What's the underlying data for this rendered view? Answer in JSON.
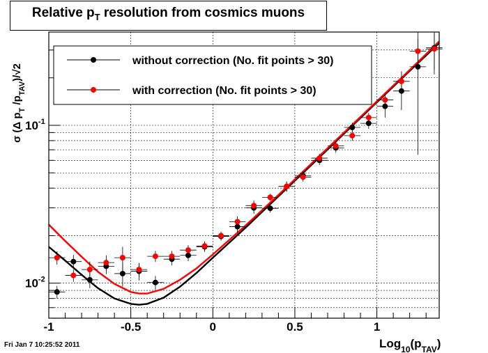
{
  "chart_data": {
    "type": "scatter",
    "title_main": "Relative p",
    "title_sub": "T",
    "title_end": " resolution from cosmics muons",
    "xlabel": "Log",
    "xlabel_sub": "10",
    "xlabel_paren": "(p",
    "xlabel_sub2": "TAV",
    "xlabel_close": ")",
    "ylabel": "σ (Δ p",
    "ylabel_sub": "T",
    "ylabel_mid": " /p",
    "ylabel_sub2": "TAV",
    "ylabel_end": ")/√2",
    "x_range": [
      -1.0,
      1.38
    ],
    "y_range": [
      0.006,
      0.39
    ],
    "y_scale": "log",
    "grid": true,
    "x_ticks": [
      {
        "v": -1,
        "label": "-1"
      },
      {
        "v": -0.5,
        "label": "-0.5"
      },
      {
        "v": 0,
        "label": "0"
      },
      {
        "v": 0.5,
        "label": "0.5"
      },
      {
        "v": 1,
        "label": "1"
      }
    ],
    "y_tick_labels": [
      {
        "v": 0.01,
        "base": "10",
        "exp": "-2"
      },
      {
        "v": 0.1,
        "base": "10",
        "exp": "-1"
      }
    ],
    "legend": {
      "position": "top-left",
      "entries": [
        {
          "label": "without correction (No. fit points > 30)",
          "color": "#000000"
        },
        {
          "label": "with correction (No. fit points > 30)",
          "color": "#ff0000"
        }
      ]
    },
    "timestamp": "Fri Jan  7 10:25:52 2011",
    "series": [
      {
        "name": "without correction (No. fit points > 30)",
        "color": "#000000",
        "x": [
          -0.95,
          -0.85,
          -0.75,
          -0.65,
          -0.55,
          -0.45,
          -0.35,
          -0.25,
          -0.15,
          -0.05,
          0.05,
          0.15,
          0.25,
          0.35,
          0.45,
          0.55,
          0.65,
          0.75,
          0.85,
          0.95,
          1.05,
          1.15,
          1.25,
          1.35
        ],
        "y": [
          0.0088,
          0.0137,
          0.0105,
          0.0128,
          0.0115,
          0.0119,
          0.0101,
          0.0142,
          0.015,
          0.017,
          0.0198,
          0.0228,
          0.03,
          0.0298,
          0.041,
          0.048,
          0.06,
          0.072,
          0.097,
          0.103,
          0.132,
          0.165,
          0.235,
          0.31
        ],
        "err": [
          0.0008,
          0.0014,
          0.0012,
          0.0014,
          0.002,
          0.0015,
          0.001,
          0.0012,
          0.0012,
          0.0012,
          0.0012,
          0.002,
          0.0025,
          0.0018,
          0.003,
          0.003,
          0.004,
          0.005,
          0.007,
          0.008,
          0.02,
          0.04,
          0.17,
          0.1
        ]
      },
      {
        "name": "with correction (No. fit points > 30)",
        "color": "#ff0000",
        "x": [
          -0.95,
          -0.85,
          -0.75,
          -0.65,
          -0.55,
          -0.45,
          -0.35,
          -0.25,
          -0.15,
          -0.05,
          0.05,
          0.15,
          0.25,
          0.35,
          0.45,
          0.55,
          0.65,
          0.75,
          0.85,
          0.95,
          1.05,
          1.15,
          1.25,
          1.35
        ],
        "y": [
          0.0145,
          0.0112,
          0.0122,
          0.0135,
          0.0145,
          0.0122,
          0.0148,
          0.0148,
          0.0162,
          0.0172,
          0.02,
          0.0245,
          0.031,
          0.035,
          0.041,
          0.047,
          0.062,
          0.074,
          0.086,
          0.112,
          0.145,
          0.19,
          0.295,
          0.305
        ],
        "err": [
          0.0014,
          0.001,
          0.0015,
          0.0015,
          0.0025,
          0.0012,
          0.0012,
          0.0012,
          0.0012,
          0.0012,
          0.0012,
          0.002,
          0.0025,
          0.0018,
          0.003,
          0.003,
          0.004,
          0.005,
          0.006,
          0.008,
          0.015,
          0.03,
          0.06,
          0.08
        ]
      }
    ],
    "fit_curves": [
      {
        "color": "#000000",
        "x": [
          -1.0,
          -0.9,
          -0.8,
          -0.7,
          -0.6,
          -0.5,
          -0.45,
          -0.4,
          -0.3,
          -0.2,
          -0.1,
          0.0,
          0.2,
          0.4,
          0.6,
          0.8,
          1.0,
          1.2,
          1.38
        ],
        "y": [
          0.017,
          0.0139,
          0.0113,
          0.0093,
          0.008,
          0.0074,
          0.0073,
          0.0074,
          0.0081,
          0.0095,
          0.0116,
          0.0145,
          0.0225,
          0.0355,
          0.056,
          0.0885,
          0.14,
          0.221,
          0.332
        ]
      },
      {
        "color": "#ff0000",
        "x": [
          -1.0,
          -0.9,
          -0.8,
          -0.7,
          -0.6,
          -0.5,
          -0.45,
          -0.4,
          -0.3,
          -0.2,
          -0.1,
          0.0,
          0.2,
          0.4,
          0.6,
          0.8,
          1.0,
          1.2,
          1.38
        ],
        "y": [
          0.0235,
          0.0185,
          0.0147,
          0.0118,
          0.0099,
          0.0088,
          0.0086,
          0.0086,
          0.0092,
          0.0105,
          0.0124,
          0.0152,
          0.0232,
          0.0362,
          0.057,
          0.09,
          0.142,
          0.224,
          0.34
        ]
      }
    ]
  }
}
